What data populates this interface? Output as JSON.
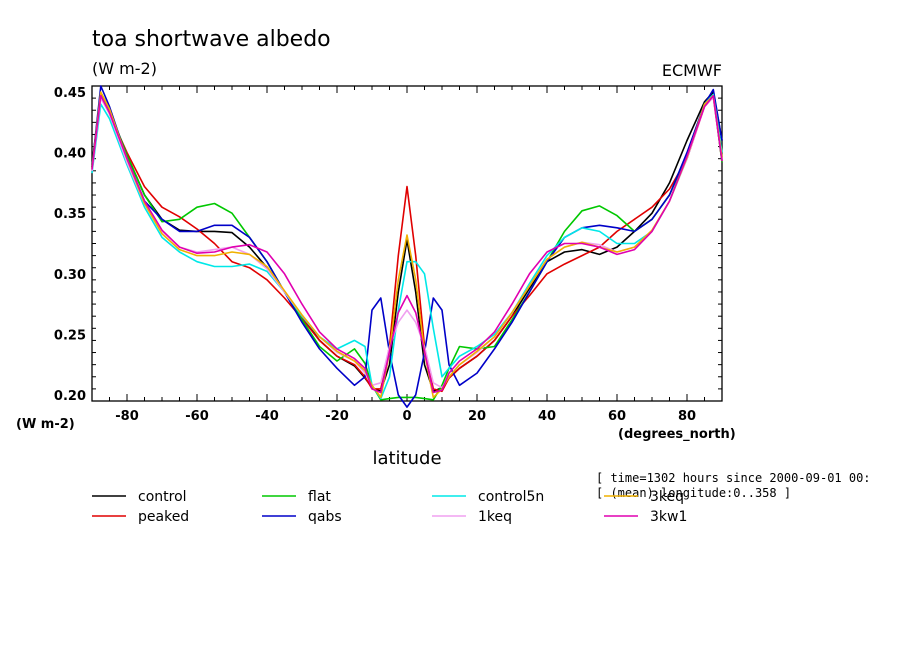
{
  "chart_data": {
    "type": "line",
    "title": "toa shortwave albedo",
    "units": "(W m-2)",
    "source": "ECMWF",
    "y_unit_label": "(W m-2)",
    "x_unit_label": "(degrees_north)",
    "xlabel": "latitude",
    "info_lines": [
      "[ time=1302 hours since 2000-09-01 00:",
      "[ (mean) longitude:0..358 ]"
    ],
    "xlim": [
      -90,
      90
    ],
    "ylim": [
      0.195,
      0.455
    ],
    "x_ticks": [
      -80,
      -60,
      -40,
      -20,
      0,
      20,
      40,
      60,
      80
    ],
    "x_tick_labels": [
      "-80",
      "-60",
      "-40",
      "-20",
      "0",
      "20",
      "40",
      "60",
      "80"
    ],
    "y_ticks": [
      0.2,
      0.25,
      0.3,
      0.35,
      0.4,
      0.45
    ],
    "y_tick_labels": [
      "0.20",
      "0.25",
      "0.30",
      "0.35",
      "0.40",
      "0.45"
    ],
    "x": [
      -90,
      -87.5,
      -85,
      -80,
      -75,
      -70,
      -65,
      -60,
      -55,
      -50,
      -45,
      -40,
      -35,
      -30,
      -25,
      -20,
      -15,
      -12,
      -10,
      -7.5,
      -5,
      -2.5,
      0,
      2.5,
      5,
      7.5,
      10,
      12,
      15,
      20,
      25,
      30,
      35,
      40,
      45,
      50,
      55,
      60,
      65,
      70,
      75,
      80,
      85,
      87.5,
      90
    ],
    "series": [
      {
        "name": "control",
        "color": "#000000",
        "values": [
          0.39,
          0.448,
          0.433,
          0.398,
          0.365,
          0.345,
          0.336,
          0.335,
          0.335,
          0.334,
          0.322,
          0.305,
          0.285,
          0.265,
          0.245,
          0.232,
          0.224,
          0.214,
          0.206,
          0.203,
          0.225,
          0.285,
          0.328,
          0.285,
          0.225,
          0.203,
          0.206,
          0.214,
          0.222,
          0.232,
          0.245,
          0.265,
          0.288,
          0.31,
          0.318,
          0.32,
          0.316,
          0.322,
          0.335,
          0.35,
          0.375,
          0.41,
          0.442,
          0.45,
          0.41
        ]
      },
      {
        "name": "peaked",
        "color": "#e00000",
        "values": [
          0.388,
          0.446,
          0.432,
          0.4,
          0.372,
          0.355,
          0.347,
          0.337,
          0.325,
          0.31,
          0.305,
          0.295,
          0.28,
          0.263,
          0.245,
          0.232,
          0.225,
          0.215,
          0.205,
          0.205,
          0.24,
          0.315,
          0.372,
          0.315,
          0.24,
          0.205,
          0.203,
          0.214,
          0.222,
          0.232,
          0.245,
          0.265,
          0.282,
          0.3,
          0.308,
          0.315,
          0.322,
          0.335,
          0.345,
          0.355,
          0.37,
          0.395,
          0.438,
          0.446,
          0.393
        ]
      },
      {
        "name": "flat",
        "color": "#00c800",
        "values": [
          0.388,
          0.447,
          0.435,
          0.398,
          0.365,
          0.343,
          0.345,
          0.355,
          0.358,
          0.35,
          0.33,
          0.31,
          0.285,
          0.262,
          0.24,
          0.228,
          0.238,
          0.226,
          0.208,
          0.196,
          0.197,
          0.198,
          0.198,
          0.198,
          0.197,
          0.196,
          0.208,
          0.222,
          0.24,
          0.238,
          0.24,
          0.262,
          0.285,
          0.31,
          0.335,
          0.352,
          0.356,
          0.348,
          0.335,
          0.345,
          0.365,
          0.398,
          0.44,
          0.448,
          0.392
        ]
      },
      {
        "name": "qabs",
        "color": "#0000c8",
        "values": [
          0.388,
          0.455,
          0.438,
          0.395,
          0.36,
          0.345,
          0.335,
          0.335,
          0.34,
          0.34,
          0.33,
          0.31,
          0.285,
          0.26,
          0.238,
          0.222,
          0.208,
          0.215,
          0.27,
          0.28,
          0.235,
          0.2,
          0.19,
          0.2,
          0.235,
          0.28,
          0.27,
          0.225,
          0.208,
          0.218,
          0.238,
          0.26,
          0.285,
          0.31,
          0.33,
          0.338,
          0.34,
          0.338,
          0.335,
          0.345,
          0.365,
          0.4,
          0.44,
          0.452,
          0.41
        ]
      },
      {
        "name": "control5n",
        "color": "#00e8e8",
        "values": [
          0.383,
          0.44,
          0.428,
          0.39,
          0.355,
          0.33,
          0.318,
          0.31,
          0.306,
          0.306,
          0.308,
          0.302,
          0.285,
          0.265,
          0.248,
          0.238,
          0.245,
          0.24,
          0.208,
          0.197,
          0.215,
          0.27,
          0.31,
          0.31,
          0.3,
          0.255,
          0.215,
          0.222,
          0.232,
          0.24,
          0.25,
          0.268,
          0.292,
          0.315,
          0.33,
          0.338,
          0.335,
          0.325,
          0.325,
          0.335,
          0.36,
          0.395,
          0.44,
          0.448,
          0.4
        ]
      },
      {
        "name": "1keq",
        "color": "#f0a0f0",
        "values": [
          0.385,
          0.445,
          0.432,
          0.392,
          0.358,
          0.335,
          0.322,
          0.318,
          0.32,
          0.322,
          0.316,
          0.304,
          0.285,
          0.266,
          0.248,
          0.235,
          0.228,
          0.218,
          0.208,
          0.21,
          0.24,
          0.26,
          0.27,
          0.26,
          0.24,
          0.21,
          0.206,
          0.215,
          0.225,
          0.235,
          0.248,
          0.268,
          0.29,
          0.312,
          0.322,
          0.326,
          0.324,
          0.318,
          0.322,
          0.335,
          0.36,
          0.395,
          0.438,
          0.446,
          0.395
        ]
      },
      {
        "name": "3keq",
        "color": "#f0b000",
        "values": [
          0.387,
          0.45,
          0.436,
          0.395,
          0.358,
          0.333,
          0.32,
          0.315,
          0.315,
          0.318,
          0.316,
          0.306,
          0.286,
          0.266,
          0.248,
          0.236,
          0.228,
          0.22,
          0.208,
          0.198,
          0.235,
          0.295,
          0.332,
          0.295,
          0.235,
          0.198,
          0.205,
          0.215,
          0.225,
          0.236,
          0.248,
          0.268,
          0.29,
          0.312,
          0.322,
          0.326,
          0.322,
          0.318,
          0.322,
          0.336,
          0.36,
          0.396,
          0.44,
          0.447,
          0.396
        ]
      },
      {
        "name": "3kw1",
        "color": "#e000b0",
        "values": [
          0.386,
          0.447,
          0.433,
          0.395,
          0.36,
          0.336,
          0.322,
          0.317,
          0.318,
          0.322,
          0.324,
          0.318,
          0.3,
          0.275,
          0.252,
          0.238,
          0.23,
          0.222,
          0.205,
          0.202,
          0.236,
          0.268,
          0.282,
          0.268,
          0.236,
          0.202,
          0.204,
          0.218,
          0.228,
          0.238,
          0.252,
          0.275,
          0.3,
          0.318,
          0.325,
          0.325,
          0.322,
          0.316,
          0.32,
          0.335,
          0.36,
          0.397,
          0.438,
          0.447,
          0.393
        ]
      }
    ]
  }
}
